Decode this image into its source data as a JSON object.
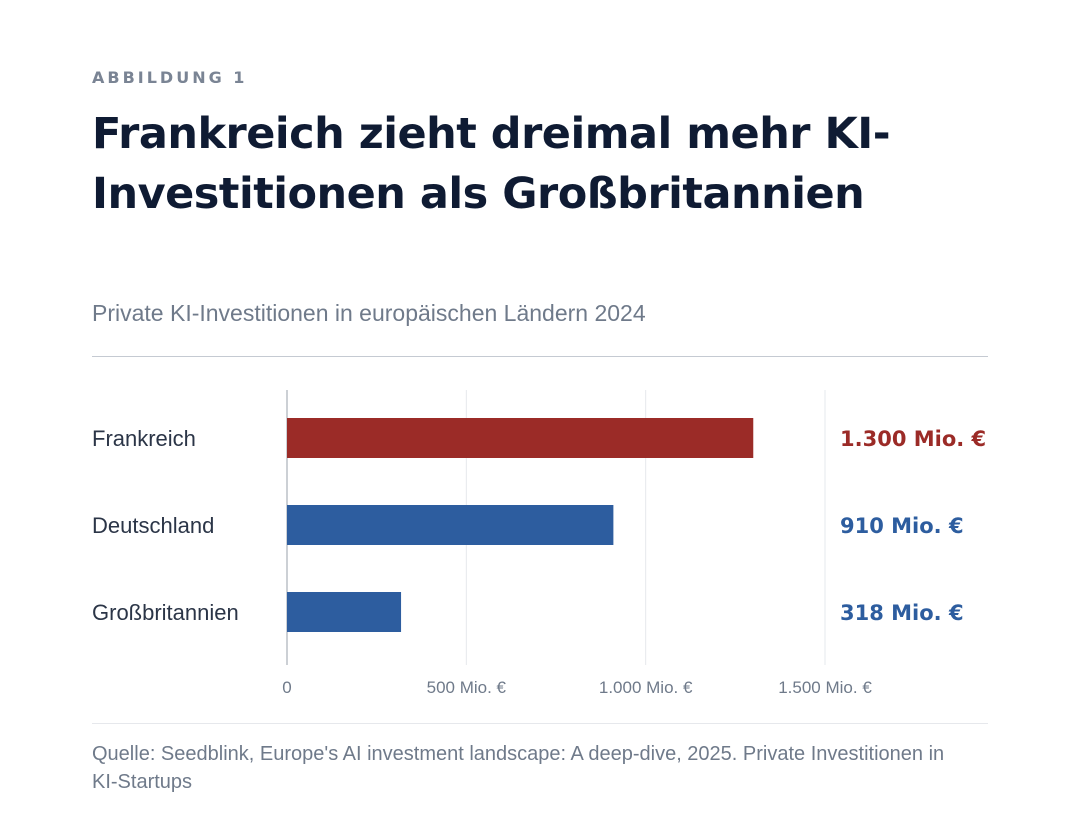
{
  "header": {
    "eyebrow": "ABBILDUNG 1",
    "title": "Frankreich zieht dreimal mehr KI-Investitionen als Großbritannien",
    "subtitle": "Private KI-Investitionen in europäischen Ländern 2024"
  },
  "footer": {
    "source": "Quelle: Seedblink, Europe's AI investment landscape: A deep-dive, 2025. Private Investitionen in KI-Startups"
  },
  "colors": {
    "highlight": "#9b2b27",
    "default": "#2d5d9f",
    "grid": "#e6e8ec",
    "axis": "#9aa1ab"
  },
  "chart_data": {
    "type": "bar",
    "orientation": "horizontal",
    "title": "Frankreich zieht dreimal mehr KI-Investitionen als Großbritannien",
    "subtitle": "Private KI-Investitionen in europäischen Ländern 2024",
    "categories": [
      "Frankreich",
      "Deutschland",
      "Großbritannien"
    ],
    "values": [
      1300,
      910,
      318
    ],
    "value_labels": [
      "1.300 Mio. €",
      "910 Mio. €",
      "318 Mio. €"
    ],
    "highlight_index": 0,
    "xlim": [
      0,
      1500
    ],
    "x_ticks": [
      0,
      500,
      1000,
      1500
    ],
    "x_tick_labels": [
      "0",
      "500 Mio. €",
      "1.000 Mio. €",
      "1.500 Mio. €"
    ],
    "grid": true,
    "legend": "none"
  }
}
